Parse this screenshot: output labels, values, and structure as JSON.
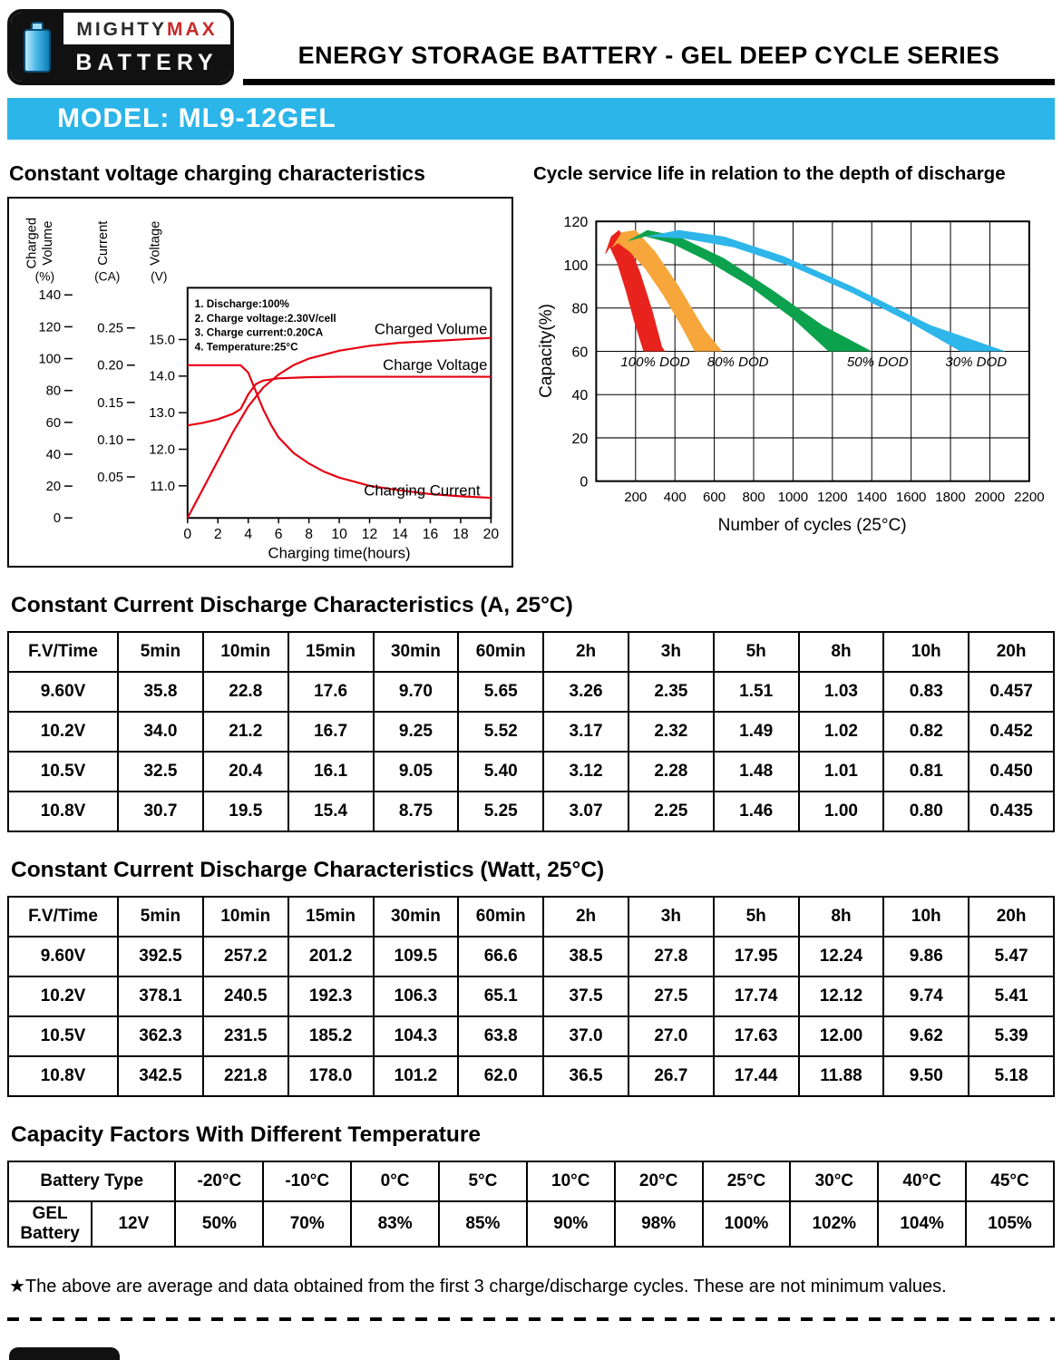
{
  "header": {
    "logo": {
      "brand_top_1": "MIGHTY",
      "brand_top_2": "MAX",
      "brand_bottom": "BATTERY"
    },
    "series_title": "ENERGY STORAGE BATTERY - GEL DEEP CYCLE SERIES"
  },
  "model_banner": {
    "text": "MODEL: ML9-12GEL",
    "bg_color": "#2bb5e8"
  },
  "charging_chart": {
    "title": "Constant voltage charging characteristics",
    "chart_data": {
      "type": "line",
      "xlabel": "Charging time(hours)",
      "x_ticks": [
        0,
        2,
        4,
        6,
        8,
        10,
        12,
        14,
        16,
        18,
        20
      ],
      "line_color": "#e60012",
      "axes": {
        "charged_volume": {
          "label": "Charged Volume",
          "unit": "(%)",
          "ticks": [
            140,
            120,
            100,
            80,
            60,
            40,
            20,
            0
          ],
          "range": [
            0,
            140
          ]
        },
        "current": {
          "label": "Current",
          "unit": "(CA)",
          "ticks": [
            "0.25",
            "0.20",
            "0.15",
            "0.10",
            "0.05"
          ],
          "range": [
            0,
            0.25
          ]
        },
        "voltage": {
          "label": "Voltage",
          "unit": "(V)",
          "ticks": [
            "15.0",
            "14.0",
            "13.0",
            "12.0",
            "11.0"
          ],
          "range": [
            11,
            15
          ]
        }
      },
      "notes": [
        "1. Discharge:100%",
        "2. Charge voltage:2.30V/cell",
        "3. Charge current:0.20CA",
        "4. Temperature:25°C"
      ],
      "series": [
        {
          "name": "Charged Volume",
          "axis": "charged_volume",
          "points": [
            [
              0,
              0
            ],
            [
              1,
              18
            ],
            [
              2,
              36
            ],
            [
              3,
              54
            ],
            [
              4,
              70
            ],
            [
              5,
              82
            ],
            [
              6,
              90
            ],
            [
              7,
              96
            ],
            [
              8,
              100
            ],
            [
              10,
              105
            ],
            [
              12,
              108
            ],
            [
              14,
              110
            ],
            [
              16,
              111
            ],
            [
              18,
              112
            ],
            [
              20,
              113
            ]
          ]
        },
        {
          "name": "Charge Voltage",
          "axis": "voltage",
          "points": [
            [
              0,
              12.65
            ],
            [
              1,
              12.72
            ],
            [
              2,
              12.82
            ],
            [
              3,
              12.97
            ],
            [
              3.5,
              13.1
            ],
            [
              4,
              13.5
            ],
            [
              4.5,
              13.78
            ],
            [
              5,
              13.88
            ],
            [
              6,
              13.94
            ],
            [
              8,
              13.97
            ],
            [
              10,
              13.98
            ],
            [
              14,
              13.98
            ],
            [
              20,
              13.98
            ]
          ]
        },
        {
          "name": "Charging Current",
          "axis": "current",
          "points": [
            [
              0,
              0.2
            ],
            [
              3.5,
              0.2
            ],
            [
              4,
              0.19
            ],
            [
              4.5,
              0.165
            ],
            [
              5,
              0.14
            ],
            [
              5.5,
              0.12
            ],
            [
              6,
              0.103
            ],
            [
              7,
              0.082
            ],
            [
              8,
              0.068
            ],
            [
              9,
              0.057
            ],
            [
              10,
              0.049
            ],
            [
              12,
              0.038
            ],
            [
              14,
              0.032
            ],
            [
              16,
              0.027
            ],
            [
              18,
              0.024
            ],
            [
              20,
              0.022
            ]
          ]
        }
      ]
    }
  },
  "cycle_chart": {
    "title": "Cycle service life in relation to the depth of discharge",
    "chart_data": {
      "type": "area",
      "ylabel": "Capacity(%)",
      "xlabel": "Number of cycles (25°C)",
      "xlim": [
        0,
        2200
      ],
      "ylim": [
        0,
        120
      ],
      "grid": true,
      "x_ticks": [
        200,
        400,
        600,
        800,
        1000,
        1200,
        1400,
        1600,
        1800,
        2000,
        2200
      ],
      "y_ticks": [
        0,
        20,
        40,
        60,
        80,
        100,
        120
      ],
      "bands": [
        {
          "name": "100% DOD",
          "color": "#e8231d",
          "label_pos": [
            300,
            53
          ],
          "polygon": [
            [
              45,
              105
            ],
            [
              75,
              113
            ],
            [
              115,
              116
            ],
            [
              165,
              110
            ],
            [
              225,
              96
            ],
            [
              285,
              79
            ],
            [
              335,
              62
            ],
            [
              350,
              60
            ],
            [
              240,
              60
            ],
            [
              195,
              73
            ],
            [
              150,
              88
            ],
            [
              105,
              101
            ],
            [
              70,
              108
            ],
            [
              48,
              105
            ]
          ]
        },
        {
          "name": "80% DOD",
          "color": "#f6a63a",
          "label_pos": [
            720,
            53
          ],
          "polygon": [
            [
              80,
              108
            ],
            [
              130,
              115
            ],
            [
              200,
              116
            ],
            [
              300,
              106
            ],
            [
              420,
              90
            ],
            [
              550,
              70
            ],
            [
              640,
              60
            ],
            [
              500,
              60
            ],
            [
              430,
              72
            ],
            [
              340,
              86
            ],
            [
              250,
              98
            ],
            [
              170,
              106
            ],
            [
              110,
              110
            ],
            [
              82,
              108
            ]
          ]
        },
        {
          "name": "50% DOD",
          "color": "#0ca24d",
          "label_pos": [
            1430,
            53
          ],
          "polygon": [
            [
              160,
              111
            ],
            [
              260,
              116
            ],
            [
              420,
              113
            ],
            [
              650,
              103
            ],
            [
              900,
              88
            ],
            [
              1150,
              72
            ],
            [
              1400,
              60
            ],
            [
              1180,
              60
            ],
            [
              1000,
              75
            ],
            [
              780,
              90
            ],
            [
              560,
              102
            ],
            [
              380,
              110
            ],
            [
              250,
              113
            ],
            [
              165,
              111
            ]
          ]
        },
        {
          "name": "30% DOD",
          "color": "#2eb6ea",
          "label_pos": [
            1930,
            53
          ],
          "polygon": [
            [
              250,
              113
            ],
            [
              420,
              116
            ],
            [
              650,
              113
            ],
            [
              950,
              104
            ],
            [
              1300,
              90
            ],
            [
              1700,
              72
            ],
            [
              2080,
              60
            ],
            [
              1850,
              60
            ],
            [
              1600,
              73
            ],
            [
              1300,
              87
            ],
            [
              1000,
              99
            ],
            [
              700,
              108
            ],
            [
              450,
              112
            ],
            [
              260,
              113
            ]
          ]
        }
      ]
    }
  },
  "discharge_table_a": {
    "title": "Constant Current Discharge Characteristics (A, 25°C)",
    "headers": [
      "F.V/Time",
      "5min",
      "10min",
      "15min",
      "30min",
      "60min",
      "2h",
      "3h",
      "5h",
      "8h",
      "10h",
      "20h"
    ],
    "rows": [
      [
        "9.60V",
        "35.8",
        "22.8",
        "17.6",
        "9.70",
        "5.65",
        "3.26",
        "2.35",
        "1.51",
        "1.03",
        "0.83",
        "0.457"
      ],
      [
        "10.2V",
        "34.0",
        "21.2",
        "16.7",
        "9.25",
        "5.52",
        "3.17",
        "2.32",
        "1.49",
        "1.02",
        "0.82",
        "0.452"
      ],
      [
        "10.5V",
        "32.5",
        "20.4",
        "16.1",
        "9.05",
        "5.40",
        "3.12",
        "2.28",
        "1.48",
        "1.01",
        "0.81",
        "0.450"
      ],
      [
        "10.8V",
        "30.7",
        "19.5",
        "15.4",
        "8.75",
        "5.25",
        "3.07",
        "2.25",
        "1.46",
        "1.00",
        "0.80",
        "0.435"
      ]
    ]
  },
  "discharge_table_w": {
    "title": "Constant Current Discharge Characteristics (Watt, 25°C)",
    "headers": [
      "F.V/Time",
      "5min",
      "10min",
      "15min",
      "30min",
      "60min",
      "2h",
      "3h",
      "5h",
      "8h",
      "10h",
      "20h"
    ],
    "rows": [
      [
        "9.60V",
        "392.5",
        "257.2",
        "201.2",
        "109.5",
        "66.6",
        "38.5",
        "27.8",
        "17.95",
        "12.24",
        "9.86",
        "5.47"
      ],
      [
        "10.2V",
        "378.1",
        "240.5",
        "192.3",
        "106.3",
        "65.1",
        "37.5",
        "27.5",
        "17.74",
        "12.12",
        "9.74",
        "5.41"
      ],
      [
        "10.5V",
        "362.3",
        "231.5",
        "185.2",
        "104.3",
        "63.8",
        "37.0",
        "27.0",
        "17.63",
        "12.00",
        "9.62",
        "5.39"
      ],
      [
        "10.8V",
        "342.5",
        "221.8",
        "178.0",
        "101.2",
        "62.0",
        "36.5",
        "26.7",
        "17.44",
        "11.88",
        "9.50",
        "5.18"
      ]
    ]
  },
  "capacity_table": {
    "title": "Capacity Factors With Different Temperature",
    "first_header_colspan": 2,
    "headers": [
      "Battery Type",
      "-20°C",
      "-10°C",
      "0°C",
      "5°C",
      "10°C",
      "20°C",
      "25°C",
      "30°C",
      "40°C",
      "45°C"
    ],
    "rows": [
      [
        "GEL Battery",
        "12V",
        "50%",
        "70%",
        "83%",
        "85%",
        "90%",
        "98%",
        "100%",
        "102%",
        "104%",
        "105%"
      ]
    ]
  },
  "footer": {
    "note": "★The above are average and data obtained from the first 3 charge/discharge cycles. These are not minimum values."
  }
}
